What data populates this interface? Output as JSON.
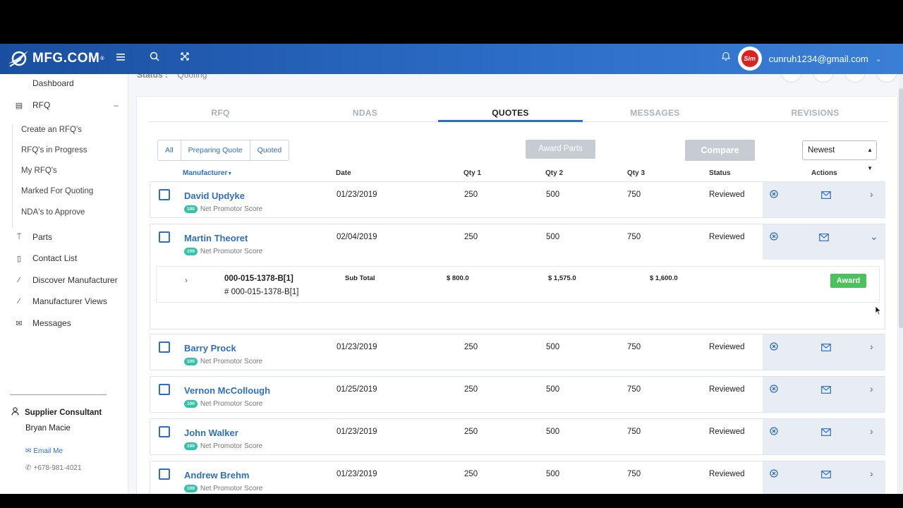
{
  "header": {
    "logo_text": "MFG.COM",
    "logo_reg": "®",
    "avatar_text": "Sim",
    "user_email": "cunruh1234@gmail.com"
  },
  "sidebar": {
    "dashboard": "Dashboard",
    "rfq": "RFQ",
    "rfq_sub": [
      "Create an RFQ's",
      "RFQ's in Progress",
      "My RFQ's",
      "Marked For Quoting",
      "NDA's to Approve"
    ],
    "parts": "Parts",
    "contact_list": "Contact List",
    "discover": "Discover Manufacturer",
    "views": "Manufacturer Views",
    "messages": "Messages",
    "consultant_title": "Supplier Consultant",
    "consultant_name": "Bryan Macie",
    "email_me": "Email Me",
    "phone": "+678-981-4021"
  },
  "peek": {
    "status_label": "Status :",
    "status_value": "Quoting"
  },
  "tabs": [
    "RFQ",
    "NDAS",
    "QUOTES",
    "MESSAGES",
    "REVISIONS"
  ],
  "filters": [
    "All",
    "Preparing Quote",
    "Quoted"
  ],
  "buttons": {
    "award_parts": "Award Parts",
    "compare": "Compare",
    "award": "Award"
  },
  "sort": {
    "selected": "Newest"
  },
  "columns": {
    "manufacturer": "Manufacturer",
    "date": "Date",
    "qty1": "Qty 1",
    "qty2": "Qty 2",
    "qty3": "Qty 3",
    "status": "Status",
    "actions": "Actions"
  },
  "nps_badge": "100",
  "nps_label": "Net Promotor Score",
  "rows": [
    {
      "name": "David Updyke",
      "date": "01/23/2019",
      "q1": "250",
      "q2": "500",
      "q3": "750",
      "status": "Reviewed"
    },
    {
      "name": "Martin Theoret",
      "date": "02/04/2019",
      "q1": "250",
      "q2": "500",
      "q3": "750",
      "status": "Reviewed"
    },
    {
      "name": "Barry Prock",
      "date": "01/23/2019",
      "q1": "250",
      "q2": "500",
      "q3": "750",
      "status": "Reviewed"
    },
    {
      "name": "Vernon McCollough",
      "date": "01/25/2019",
      "q1": "250",
      "q2": "500",
      "q3": "750",
      "status": "Reviewed"
    },
    {
      "name": "John Walker",
      "date": "01/23/2019",
      "q1": "250",
      "q2": "500",
      "q3": "750",
      "status": "Reviewed"
    },
    {
      "name": "Andrew Brehm",
      "date": "01/23/2019",
      "q1": "250",
      "q2": "500",
      "q3": "750",
      "status": "Reviewed"
    }
  ],
  "detail": {
    "part_no": "000-015-1378-B[1]",
    "part_sub": "# 000-015-1378-B[1]",
    "subtotal_label": "Sub Total",
    "sub1": "$ 800.0",
    "sub2": "$ 1,575.0",
    "sub3": "$ 1,600.0"
  }
}
